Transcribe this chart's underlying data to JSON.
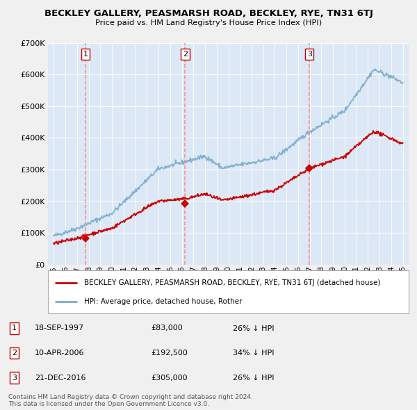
{
  "title": "BECKLEY GALLERY, PEASMARSH ROAD, BECKLEY, RYE, TN31 6TJ",
  "subtitle": "Price paid vs. HM Land Registry's House Price Index (HPI)",
  "sale_dates": [
    "18-SEP-1997",
    "10-APR-2006",
    "21-DEC-2016"
  ],
  "sale_years": [
    1997.72,
    2006.28,
    2016.97
  ],
  "sale_prices": [
    83000,
    192500,
    305000
  ],
  "sale_labels": [
    "1",
    "2",
    "3"
  ],
  "legend_property": "BECKLEY GALLERY, PEASMARSH ROAD, BECKLEY, RYE, TN31 6TJ (detached house)",
  "legend_hpi": "HPI: Average price, detached house, Rother",
  "footer1": "Contains HM Land Registry data © Crown copyright and database right 2024.",
  "footer2": "This data is licensed under the Open Government Licence v3.0.",
  "table_rows": [
    {
      "num": "1",
      "date": "18-SEP-1997",
      "price": "£83,000",
      "pct": "26% ↓ HPI"
    },
    {
      "num": "2",
      "date": "10-APR-2006",
      "price": "£192,500",
      "pct": "34% ↓ HPI"
    },
    {
      "num": "3",
      "date": "21-DEC-2016",
      "price": "£305,000",
      "pct": "26% ↓ HPI"
    }
  ],
  "yticks": [
    0,
    100000,
    200000,
    300000,
    400000,
    500000,
    600000,
    700000
  ],
  "ylim": [
    0,
    700000
  ],
  "xlim_start": 1994.5,
  "xlim_end": 2025.5,
  "fig_bg": "#f0f0f0",
  "plot_bg": "#dce8f5",
  "red_line_color": "#cc0000",
  "blue_line_color": "#7aacce",
  "dashed_color": "#ff8888"
}
